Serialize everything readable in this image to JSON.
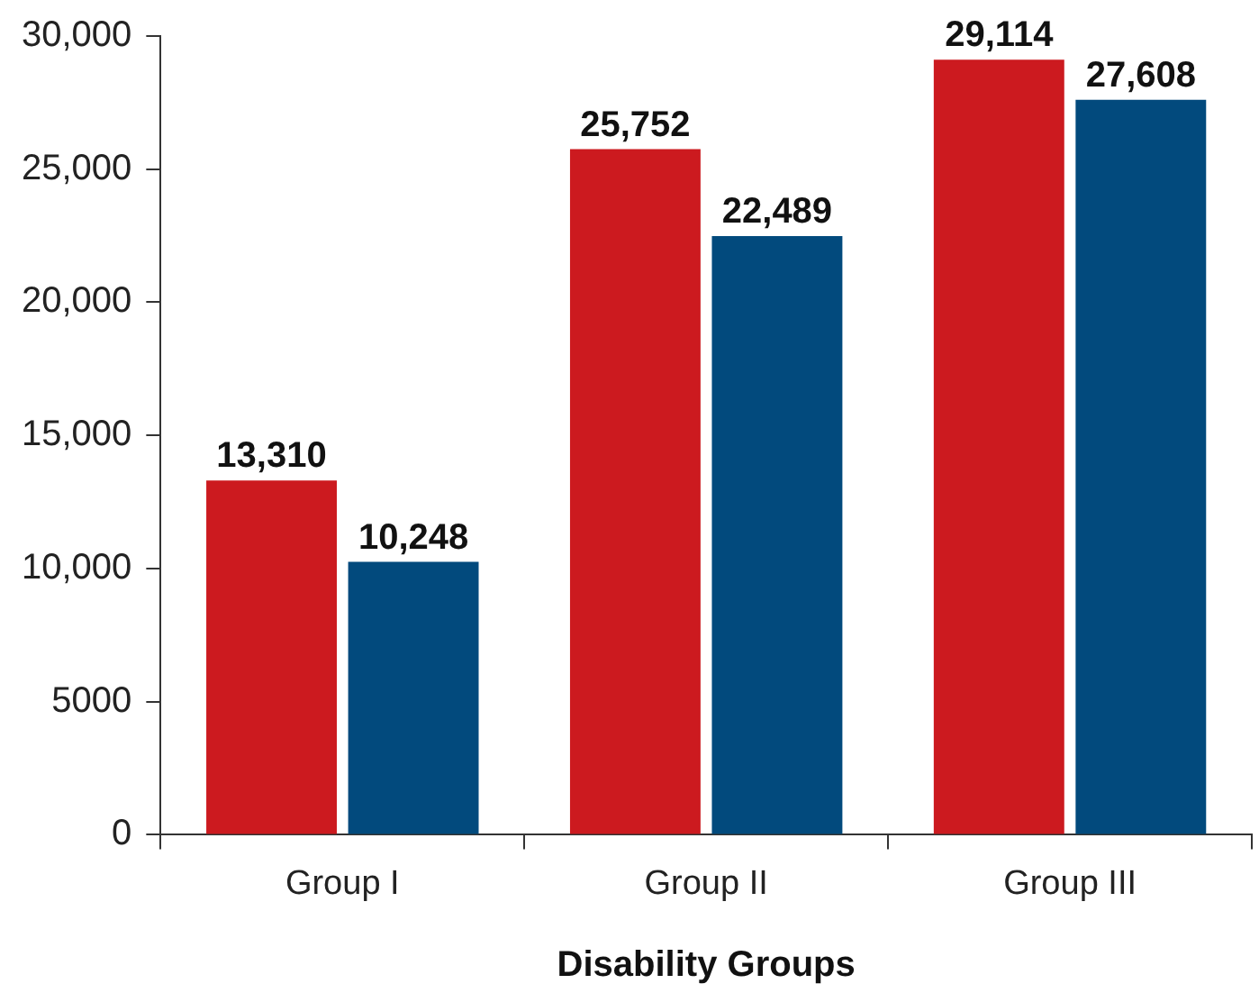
{
  "chart_data": {
    "type": "bar",
    "xlabel": "Disability Groups",
    "categories": [
      "Group I",
      "Group II",
      "Group III"
    ],
    "series": [
      {
        "color": "#cc1a1f",
        "values": [
          13310,
          25752,
          29114
        ],
        "value_labels": [
          "13,310",
          "25,752",
          "29,114"
        ]
      },
      {
        "color": "#024a7d",
        "values": [
          10248,
          22489,
          27608
        ],
        "value_labels": [
          "10,248",
          "22,489",
          "27,608"
        ]
      }
    ],
    "ylim": [
      0,
      30000
    ],
    "yticks": [
      0,
      5000,
      {
        "value": 10000,
        "label": "10,000"
      },
      {
        "value": 15000,
        "label": "15,000"
      },
      {
        "value": 20000,
        "label": "20,000"
      },
      {
        "value": 25000,
        "label": "25,000"
      },
      {
        "value": 30000,
        "label": "30,000"
      }
    ]
  }
}
